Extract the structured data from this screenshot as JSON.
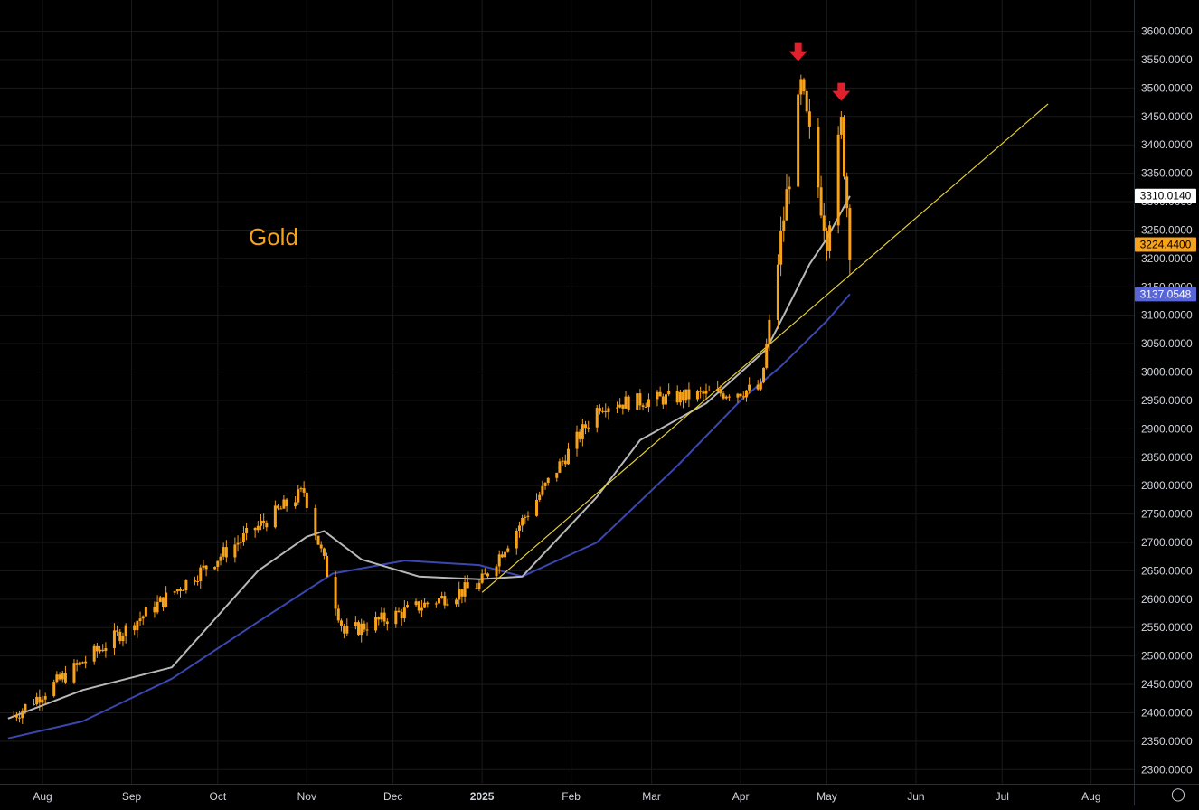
{
  "chart_data": {
    "type": "candlestick",
    "instrument_label": "Gold",
    "price_axis": {
      "ticks": [
        "3600.0000",
        "3550.0000",
        "3500.0000",
        "3450.0000",
        "3400.0000",
        "3350.0000",
        "3300.0000",
        "3250.0000",
        "3200.0000",
        "3150.0000",
        "3100.0000",
        "3050.0000",
        "3000.0000",
        "2950.0000",
        "2900.0000",
        "2850.0000",
        "2800.0000",
        "2750.0000",
        "2700.0000",
        "2650.0000",
        "2600.0000",
        "2550.0000",
        "2500.0000",
        "2450.0000",
        "2400.0000",
        "2350.0000",
        "2300.0000"
      ],
      "ylim": [
        2275,
        3655
      ]
    },
    "time_axis": {
      "ticks": [
        "Aug",
        "Sep",
        "Oct",
        "Nov",
        "Dec",
        "2025",
        "Feb",
        "Mar",
        "Apr",
        "May",
        "Jun",
        "Jul",
        "Aug"
      ],
      "bold": [
        "2025"
      ]
    },
    "badges": [
      {
        "label": "3310.0140",
        "value": 3310.014,
        "color": "#ffffff",
        "text_color": "#000000"
      },
      {
        "label": "3224.4400",
        "value": 3224.44,
        "color": "#f7a21b",
        "text_color": "#000000"
      },
      {
        "label": "3137.0548",
        "value": 3137.0548,
        "color": "#5865d6",
        "text_color": "#ffffff"
      }
    ],
    "colors": {
      "candle": "#f7a21b",
      "sma_fast": "#b8b8b8",
      "sma_slow": "#3a47b0",
      "trendline": "#e8d233",
      "arrow": "#e0202a",
      "grid": "#1a1a1a"
    },
    "key_points": [
      {
        "date": "2024-07-22",
        "price": 2395
      },
      {
        "date": "2024-10-31",
        "price": 2790
      },
      {
        "date": "2024-11-14",
        "price": 2540
      },
      {
        "date": "2024-12-31",
        "price": 2625
      },
      {
        "date": "2025-02-11",
        "price": 2942
      },
      {
        "date": "2025-04-08",
        "price": 2970
      },
      {
        "date": "2025-04-22",
        "price": 3500
      },
      {
        "date": "2025-05-01",
        "price": 3240
      },
      {
        "date": "2025-05-06",
        "price": 3435
      },
      {
        "date": "2025-05-09",
        "price": 3224
      }
    ],
    "sma_fast_points": [
      {
        "date": "2024-07-20",
        "price": 2390
      },
      {
        "date": "2024-08-15",
        "price": 2440
      },
      {
        "date": "2024-09-15",
        "price": 2480
      },
      {
        "date": "2024-10-15",
        "price": 2650
      },
      {
        "date": "2024-11-01",
        "price": 2710
      },
      {
        "date": "2024-11-07",
        "price": 2720
      },
      {
        "date": "2024-11-20",
        "price": 2670
      },
      {
        "date": "2024-12-10",
        "price": 2640
      },
      {
        "date": "2024-12-31",
        "price": 2635
      },
      {
        "date": "2025-01-15",
        "price": 2640
      },
      {
        "date": "2025-02-10",
        "price": 2780
      },
      {
        "date": "2025-02-25",
        "price": 2880
      },
      {
        "date": "2025-03-20",
        "price": 2945
      },
      {
        "date": "2025-04-10",
        "price": 3040
      },
      {
        "date": "2025-04-25",
        "price": 3190
      },
      {
        "date": "2025-05-01",
        "price": 3235
      },
      {
        "date": "2025-05-09",
        "price": 3310
      }
    ],
    "sma_slow_points": [
      {
        "date": "2024-07-20",
        "price": 2355
      },
      {
        "date": "2024-08-15",
        "price": 2385
      },
      {
        "date": "2024-09-15",
        "price": 2460
      },
      {
        "date": "2024-10-15",
        "price": 2560
      },
      {
        "date": "2024-11-10",
        "price": 2645
      },
      {
        "date": "2024-12-05",
        "price": 2668
      },
      {
        "date": "2024-12-31",
        "price": 2660
      },
      {
        "date": "2025-01-15",
        "price": 2640
      },
      {
        "date": "2025-02-10",
        "price": 2700
      },
      {
        "date": "2025-03-10",
        "price": 2835
      },
      {
        "date": "2025-04-01",
        "price": 2950
      },
      {
        "date": "2025-04-15",
        "price": 3010
      },
      {
        "date": "2025-05-01",
        "price": 3090
      },
      {
        "date": "2025-05-09",
        "price": 3137
      }
    ],
    "trendline": [
      {
        "date": "2025-01-01",
        "price": 2612
      },
      {
        "date": "2025-07-17",
        "price": 3472
      }
    ],
    "arrows": [
      {
        "date": "2025-04-21",
        "price": 3560
      },
      {
        "date": "2025-05-06",
        "price": 3490
      }
    ]
  }
}
